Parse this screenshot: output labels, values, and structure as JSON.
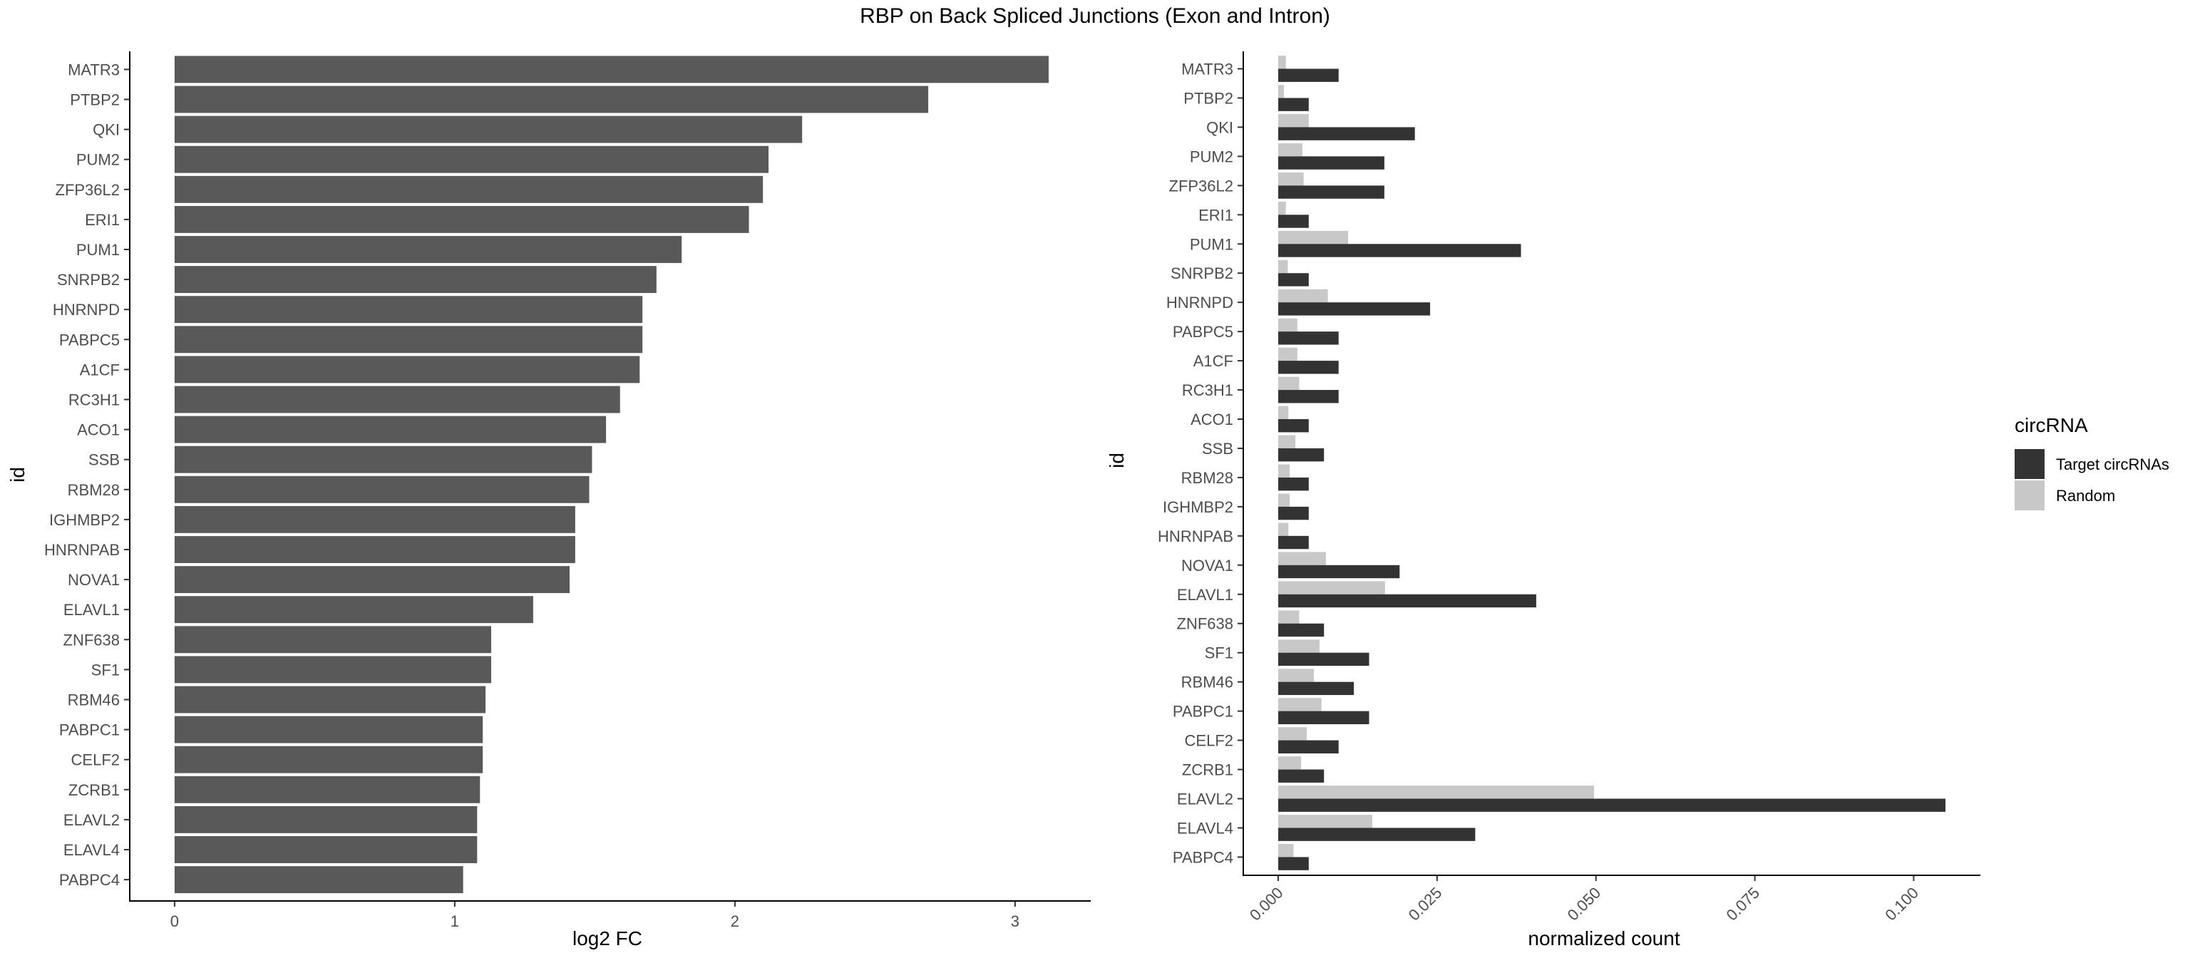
{
  "figure": {
    "title": "RBP on Back Spliced Junctions (Exon and Intron)"
  },
  "chart_data": [
    {
      "type": "bar",
      "orientation": "horizontal",
      "categories": [
        "MATR3",
        "PTBP2",
        "QKI",
        "PUM2",
        "ZFP36L2",
        "ERI1",
        "PUM1",
        "SNRPB2",
        "HNRNPD",
        "PABPC5",
        "A1CF",
        "RC3H1",
        "ACO1",
        "SSB",
        "RBM28",
        "IGHMBP2",
        "HNRNPAB",
        "NOVA1",
        "ELAVL1",
        "ZNF638",
        "SF1",
        "RBM46",
        "PABPC1",
        "CELF2",
        "ZCRB1",
        "ELAVL2",
        "ELAVL4",
        "PABPC4"
      ],
      "values": [
        3.12,
        2.69,
        2.24,
        2.12,
        2.1,
        2.05,
        1.81,
        1.72,
        1.67,
        1.67,
        1.66,
        1.59,
        1.54,
        1.49,
        1.48,
        1.43,
        1.43,
        1.41,
        1.28,
        1.13,
        1.13,
        1.11,
        1.1,
        1.1,
        1.09,
        1.08,
        1.08,
        1.03
      ],
      "xlabel": "log2 FC",
      "ylabel": "id",
      "xlim": [
        -0.16,
        3.27
      ],
      "xticks": [
        "0",
        "1",
        "2",
        "3"
      ],
      "bar_color": "#595959",
      "grid": false
    },
    {
      "type": "bar",
      "orientation": "horizontal",
      "grouped": true,
      "categories": [
        "MATR3",
        "PTBP2",
        "QKI",
        "PUM2",
        "ZFP36L2",
        "ERI1",
        "PUM1",
        "SNRPB2",
        "HNRNPD",
        "PABPC5",
        "A1CF",
        "RC3H1",
        "ACO1",
        "SSB",
        "RBM28",
        "IGHMBP2",
        "HNRNPAB",
        "NOVA1",
        "ELAVL1",
        "ZNF638",
        "SF1",
        "RBM46",
        "PABPC1",
        "CELF2",
        "ZCRB1",
        "ELAVL2",
        "ELAVL4",
        "PABPC4"
      ],
      "series": [
        {
          "name": "Target circRNAs",
          "color": "#333333",
          "values": [
            0.0095,
            0.0048,
            0.0215,
            0.0167,
            0.0167,
            0.0048,
            0.0382,
            0.0048,
            0.0239,
            0.0095,
            0.0095,
            0.0095,
            0.0048,
            0.0072,
            0.0048,
            0.0048,
            0.0048,
            0.0191,
            0.0406,
            0.0072,
            0.0143,
            0.0119,
            0.0143,
            0.0095,
            0.0072,
            0.105,
            0.031,
            0.0048
          ]
        },
        {
          "name": "Random",
          "color": "#c8c8c8",
          "values": [
            0.0012,
            0.0009,
            0.0048,
            0.0038,
            0.004,
            0.0012,
            0.011,
            0.0015,
            0.0078,
            0.003,
            0.003,
            0.0033,
            0.0016,
            0.0027,
            0.0018,
            0.0018,
            0.0016,
            0.0075,
            0.0168,
            0.0033,
            0.0065,
            0.0056,
            0.0068,
            0.0045,
            0.0036,
            0.0497,
            0.0148,
            0.0024
          ]
        }
      ],
      "xlabel": "normalized count",
      "ylabel": "id",
      "xlim": [
        -0.0055,
        0.1105
      ],
      "xticks": [
        "0.000",
        "0.025",
        "0.050",
        "0.075",
        "0.100"
      ],
      "legend": {
        "title": "circRNA",
        "position": "right"
      },
      "grid": false
    }
  ]
}
